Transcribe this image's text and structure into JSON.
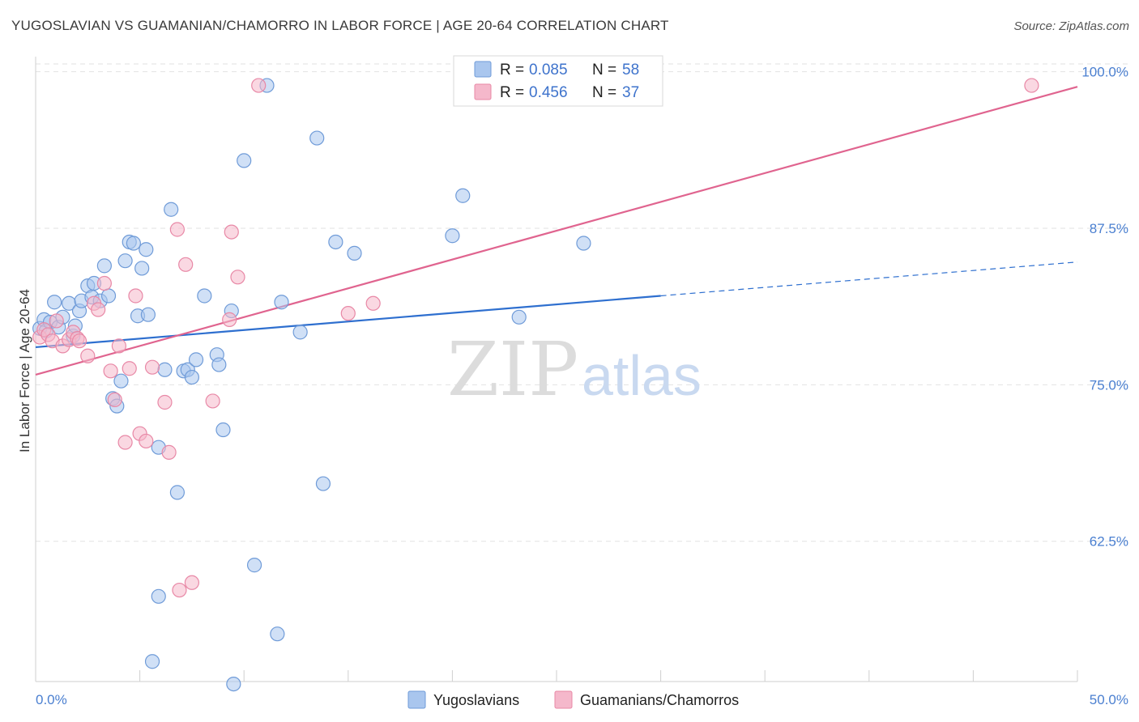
{
  "header": {
    "title": "YUGOSLAVIAN VS GUAMANIAN/CHAMORRO IN LABOR FORCE | AGE 20-64 CORRELATION CHART",
    "source": "Source: ZipAtlas.com"
  },
  "watermark": {
    "zip": "ZIP",
    "atlas": "atlas"
  },
  "colors": {
    "blue_fill": "#a9c6ee",
    "blue_stroke": "#6f9bd8",
    "blue_line": "#2e6fcf",
    "pink_fill": "#f5b8cb",
    "pink_stroke": "#e888a6",
    "pink_line": "#e0648f",
    "grid": "#e2e2e2",
    "tick_label": "#4a7fd0"
  },
  "legend": {
    "rows": [
      {
        "r_label": "R = ",
        "r_value": "0.085",
        "n_label": "N = ",
        "n_value": "58"
      },
      {
        "r_label": "R = ",
        "r_value": "0.456",
        "n_label": "N = ",
        "n_value": "37"
      }
    ]
  },
  "chart_data": {
    "type": "scatter",
    "title": "YUGOSLAVIAN VS GUAMANIAN/CHAMORRO IN LABOR FORCE | AGE 20-64 CORRELATION CHART",
    "xlabel": "",
    "ylabel": "In Labor Force | Age 20-64",
    "xlim": [
      0,
      50
    ],
    "ylim": [
      51.3,
      101.2
    ],
    "x_tick_labels": [
      {
        "value": 0,
        "label": "0.0%"
      },
      {
        "value": 50,
        "label": "50.0%"
      }
    ],
    "y_ticks": [
      {
        "value": 62.5,
        "label": "62.5%"
      },
      {
        "value": 75.0,
        "label": "75.0%"
      },
      {
        "value": 87.5,
        "label": "87.5%"
      },
      {
        "value": 100.0,
        "label": "100.0%"
      }
    ],
    "series": [
      {
        "name": "Yugoslavians",
        "color": "#a9c6ee",
        "r": 0.085,
        "n": 58,
        "trend": {
          "x": [
            0,
            30
          ],
          "y": [
            78.0,
            82.1
          ],
          "dashed_to": [
            50,
            84.8
          ]
        },
        "points": [
          [
            0.2,
            79.5
          ],
          [
            0.4,
            80.2
          ],
          [
            0.5,
            79.3
          ],
          [
            0.7,
            80.0
          ],
          [
            0.9,
            81.6
          ],
          [
            1.1,
            79.6
          ],
          [
            1.3,
            80.4
          ],
          [
            1.6,
            81.5
          ],
          [
            1.8,
            78.9
          ],
          [
            1.9,
            79.7
          ],
          [
            2.1,
            80.9
          ],
          [
            2.2,
            81.7
          ],
          [
            2.5,
            82.9
          ],
          [
            2.7,
            82.0
          ],
          [
            2.8,
            83.1
          ],
          [
            3.1,
            81.7
          ],
          [
            3.3,
            84.5
          ],
          [
            3.5,
            82.1
          ],
          [
            3.7,
            73.9
          ],
          [
            3.9,
            73.3
          ],
          [
            4.1,
            75.3
          ],
          [
            4.3,
            84.9
          ],
          [
            4.5,
            86.4
          ],
          [
            4.7,
            86.3
          ],
          [
            4.9,
            80.5
          ],
          [
            5.1,
            84.3
          ],
          [
            5.3,
            85.8
          ],
          [
            5.4,
            80.6
          ],
          [
            5.9,
            70.0
          ],
          [
            6.2,
            76.2
          ],
          [
            6.5,
            89.0
          ],
          [
            6.8,
            66.4
          ],
          [
            7.1,
            76.1
          ],
          [
            7.3,
            76.2
          ],
          [
            7.5,
            75.6
          ],
          [
            7.7,
            77.0
          ],
          [
            8.1,
            82.1
          ],
          [
            8.7,
            77.4
          ],
          [
            8.8,
            76.6
          ],
          [
            9.0,
            71.4
          ],
          [
            9.5,
            51.1
          ],
          [
            9.4,
            80.9
          ],
          [
            10.0,
            92.9
          ],
          [
            10.5,
            60.6
          ],
          [
            11.1,
            98.9
          ],
          [
            11.6,
            55.1
          ],
          [
            11.8,
            81.6
          ],
          [
            12.7,
            79.2
          ],
          [
            13.5,
            94.7
          ],
          [
            13.8,
            67.1
          ],
          [
            14.4,
            86.4
          ],
          [
            15.3,
            85.5
          ],
          [
            20.0,
            86.9
          ],
          [
            20.5,
            90.1
          ],
          [
            23.2,
            80.4
          ],
          [
            26.3,
            86.3
          ],
          [
            5.9,
            58.1
          ],
          [
            5.6,
            52.9
          ]
        ]
      },
      {
        "name": "Guamanians/Chamorros",
        "color": "#f5b8cb",
        "r": 0.456,
        "n": 37,
        "trend": {
          "x": [
            0,
            50
          ],
          "y": [
            75.8,
            98.8
          ]
        },
        "points": [
          [
            0.2,
            78.8
          ],
          [
            0.4,
            79.4
          ],
          [
            0.6,
            79.0
          ],
          [
            0.8,
            78.5
          ],
          [
            1.0,
            80.1
          ],
          [
            1.3,
            78.1
          ],
          [
            1.6,
            78.6
          ],
          [
            1.8,
            79.2
          ],
          [
            2.0,
            78.7
          ],
          [
            2.1,
            78.5
          ],
          [
            2.5,
            77.3
          ],
          [
            2.8,
            81.5
          ],
          [
            3.0,
            81.0
          ],
          [
            3.3,
            83.1
          ],
          [
            3.6,
            76.1
          ],
          [
            3.8,
            73.8
          ],
          [
            4.0,
            78.1
          ],
          [
            4.3,
            70.4
          ],
          [
            4.5,
            76.3
          ],
          [
            4.8,
            82.1
          ],
          [
            5.0,
            71.1
          ],
          [
            5.3,
            70.5
          ],
          [
            5.6,
            76.4
          ],
          [
            6.2,
            73.6
          ],
          [
            6.4,
            69.6
          ],
          [
            6.8,
            87.4
          ],
          [
            6.9,
            58.6
          ],
          [
            7.2,
            84.6
          ],
          [
            7.5,
            59.2
          ],
          [
            8.5,
            73.7
          ],
          [
            9.3,
            80.2
          ],
          [
            9.4,
            87.2
          ],
          [
            9.7,
            83.6
          ],
          [
            10.7,
            98.9
          ],
          [
            15.0,
            80.7
          ],
          [
            16.2,
            81.5
          ],
          [
            47.8,
            98.9
          ]
        ]
      }
    ]
  }
}
